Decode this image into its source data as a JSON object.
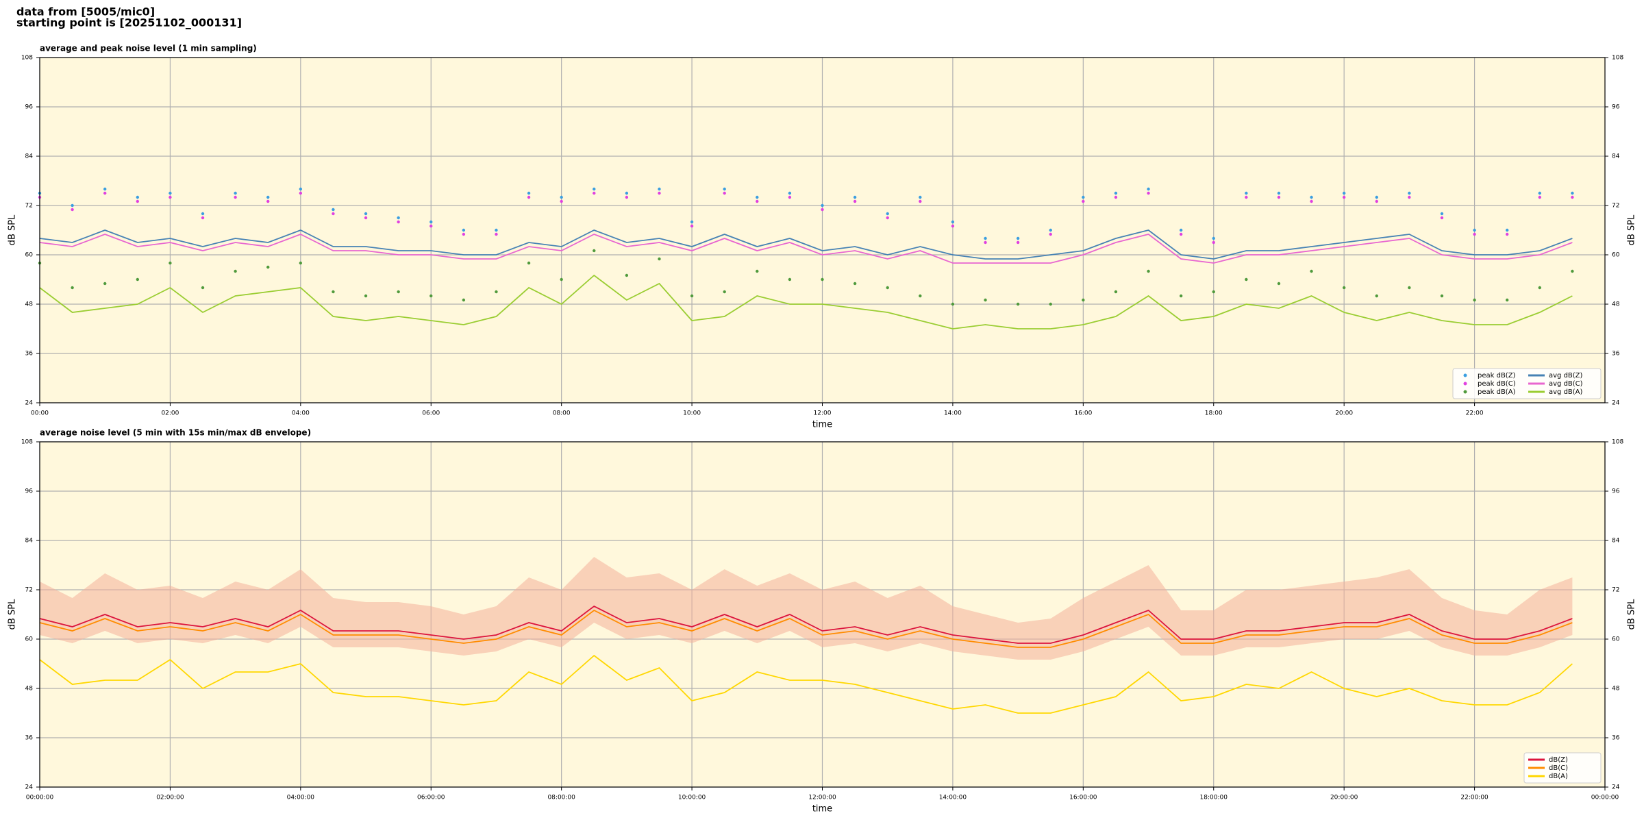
{
  "figure_title": [
    "data from [5005/mic0]",
    "starting point is [20251102_000131]"
  ],
  "chart_data": [
    {
      "type": "line",
      "title": "average and peak noise level (1 min sampling)",
      "xlabel": "time",
      "ylabel": "dB SPL",
      "x": [
        0,
        0.5,
        1,
        1.5,
        2,
        2.5,
        3,
        3.5,
        4,
        4.5,
        5,
        5.5,
        6,
        6.5,
        7,
        7.5,
        8,
        8.5,
        9,
        9.5,
        10,
        10.5,
        11,
        11.5,
        12,
        12.5,
        13,
        13.5,
        14,
        14.5,
        15,
        15.5,
        16,
        16.5,
        17,
        17.5,
        18,
        18.5,
        19,
        19.5,
        20,
        20.5,
        21,
        21.5,
        22,
        22.5,
        23,
        23.5
      ],
      "xlim": [
        0,
        24
      ],
      "xticks": [
        {
          "value": 0,
          "label": "00:00"
        },
        {
          "value": 2,
          "label": "02:00"
        },
        {
          "value": 4,
          "label": "04:00"
        },
        {
          "value": 6,
          "label": "06:00"
        },
        {
          "value": 8,
          "label": "08:00"
        },
        {
          "value": 10,
          "label": "10:00"
        },
        {
          "value": 12,
          "label": "12:00"
        },
        {
          "value": 14,
          "label": "14:00"
        },
        {
          "value": 16,
          "label": "16:00"
        },
        {
          "value": 18,
          "label": "18:00"
        },
        {
          "value": 20,
          "label": "20:00"
        },
        {
          "value": 22,
          "label": "22:00"
        }
      ],
      "ylim": [
        24,
        108
      ],
      "yticks": [
        24,
        36,
        48,
        60,
        72,
        84,
        96,
        108
      ],
      "grid": true,
      "legend": "lower right",
      "legend_columns": 2,
      "background": "#fff8dc",
      "series": [
        {
          "name": "peak dB(Z)",
          "style": "dots",
          "color": "#3a9ee0",
          "values": [
            75,
            72,
            76,
            74,
            75,
            70,
            75,
            74,
            76,
            71,
            70,
            69,
            68,
            66,
            66,
            75,
            74,
            76,
            75,
            76,
            68,
            76,
            74,
            75,
            72,
            74,
            70,
            74,
            68,
            64,
            64,
            66,
            74,
            75,
            76,
            66,
            64,
            75,
            75,
            74,
            75,
            74,
            75,
            70,
            66,
            66,
            75,
            75
          ]
        },
        {
          "name": "peak dB(C)",
          "style": "dots",
          "color": "#e040e0",
          "values": [
            74,
            71,
            75,
            73,
            74,
            69,
            74,
            73,
            75,
            70,
            69,
            68,
            67,
            65,
            65,
            74,
            73,
            75,
            74,
            75,
            67,
            75,
            73,
            74,
            71,
            73,
            69,
            73,
            67,
            63,
            63,
            65,
            73,
            74,
            75,
            65,
            63,
            74,
            74,
            73,
            74,
            73,
            74,
            69,
            65,
            65,
            74,
            74
          ]
        },
        {
          "name": "peak dB(A)",
          "style": "dots",
          "color": "#4f9a3c",
          "values": [
            58,
            52,
            53,
            54,
            58,
            52,
            56,
            57,
            58,
            51,
            50,
            51,
            50,
            49,
            51,
            58,
            54,
            61,
            55,
            59,
            50,
            51,
            56,
            54,
            54,
            53,
            52,
            50,
            48,
            49,
            48,
            48,
            49,
            51,
            56,
            50,
            51,
            54,
            53,
            56,
            52,
            50,
            52,
            50,
            49,
            49,
            52,
            56
          ]
        },
        {
          "name": "avg dB(Z)",
          "style": "line",
          "color": "#4682b4",
          "values": [
            64,
            63,
            66,
            63,
            64,
            62,
            64,
            63,
            66,
            62,
            62,
            61,
            61,
            60,
            60,
            63,
            62,
            66,
            63,
            64,
            62,
            65,
            62,
            64,
            61,
            62,
            60,
            62,
            60,
            59,
            59,
            60,
            61,
            64,
            66,
            60,
            59,
            61,
            61,
            62,
            63,
            64,
            65,
            61,
            60,
            60,
            61,
            64
          ]
        },
        {
          "name": "avg dB(C)",
          "style": "line",
          "color": "#e866d0",
          "values": [
            63,
            62,
            65,
            62,
            63,
            61,
            63,
            62,
            65,
            61,
            61,
            60,
            60,
            59,
            59,
            62,
            61,
            65,
            62,
            63,
            61,
            64,
            61,
            63,
            60,
            61,
            59,
            61,
            58,
            58,
            58,
            58,
            60,
            63,
            65,
            59,
            58,
            60,
            60,
            61,
            62,
            63,
            64,
            60,
            59,
            59,
            60,
            63
          ]
        },
        {
          "name": "avg dB(A)",
          "style": "line",
          "color": "#9acd32",
          "values": [
            52,
            46,
            47,
            48,
            52,
            46,
            50,
            51,
            52,
            45,
            44,
            45,
            44,
            43,
            45,
            52,
            48,
            55,
            49,
            53,
            44,
            45,
            50,
            48,
            48,
            47,
            46,
            44,
            42,
            43,
            42,
            42,
            43,
            45,
            50,
            44,
            45,
            48,
            47,
            50,
            46,
            44,
            46,
            44,
            43,
            43,
            46,
            50
          ]
        }
      ]
    },
    {
      "type": "line",
      "title": "average noise level (5 min with 15s min/max dB envelope)",
      "xlabel": "time",
      "ylabel": "dB SPL",
      "x": [
        0,
        0.5,
        1,
        1.5,
        2,
        2.5,
        3,
        3.5,
        4,
        4.5,
        5,
        5.5,
        6,
        6.5,
        7,
        7.5,
        8,
        8.5,
        9,
        9.5,
        10,
        10.5,
        11,
        11.5,
        12,
        12.5,
        13,
        13.5,
        14,
        14.5,
        15,
        15.5,
        16,
        16.5,
        17,
        17.5,
        18,
        18.5,
        19,
        19.5,
        20,
        20.5,
        21,
        21.5,
        22,
        22.5,
        23,
        23.5
      ],
      "xlim": [
        0,
        24
      ],
      "xticks": [
        {
          "value": 0,
          "label": "00:00:00"
        },
        {
          "value": 2,
          "label": "02:00:00"
        },
        {
          "value": 4,
          "label": "04:00:00"
        },
        {
          "value": 6,
          "label": "06:00:00"
        },
        {
          "value": 8,
          "label": "08:00:00"
        },
        {
          "value": 10,
          "label": "10:00:00"
        },
        {
          "value": 12,
          "label": "12:00:00"
        },
        {
          "value": 14,
          "label": "14:00:00"
        },
        {
          "value": 16,
          "label": "16:00:00"
        },
        {
          "value": 18,
          "label": "18:00:00"
        },
        {
          "value": 20,
          "label": "20:00:00"
        },
        {
          "value": 22,
          "label": "22:00:00"
        },
        {
          "value": 24,
          "label": "00:00:00"
        }
      ],
      "ylim": [
        24,
        108
      ],
      "yticks": [
        24,
        36,
        48,
        60,
        72,
        84,
        96,
        108
      ],
      "grid": true,
      "legend": "lower right",
      "legend_columns": 1,
      "background": "#fff8dc",
      "envelope": {
        "color": "#f4b09a",
        "high": [
          74,
          70,
          76,
          72,
          73,
          70,
          74,
          72,
          77,
          70,
          69,
          69,
          68,
          66,
          68,
          75,
          72,
          80,
          75,
          76,
          72,
          77,
          73,
          76,
          72,
          74,
          70,
          73,
          68,
          66,
          64,
          65,
          70,
          74,
          78,
          67,
          67,
          72,
          72,
          73,
          74,
          75,
          77,
          70,
          67,
          66,
          72,
          75
        ],
        "low": [
          61,
          59,
          62,
          59,
          60,
          59,
          61,
          59,
          63,
          58,
          58,
          58,
          57,
          56,
          57,
          60,
          58,
          64,
          60,
          61,
          59,
          62,
          59,
          62,
          58,
          59,
          57,
          59,
          57,
          56,
          55,
          55,
          57,
          60,
          63,
          56,
          56,
          58,
          58,
          59,
          60,
          60,
          62,
          58,
          56,
          56,
          58,
          61
        ]
      },
      "series": [
        {
          "name": "dB(Z)",
          "style": "line",
          "color": "#dc143c",
          "values": [
            65,
            63,
            66,
            63,
            64,
            63,
            65,
            63,
            67,
            62,
            62,
            62,
            61,
            60,
            61,
            64,
            62,
            68,
            64,
            65,
            63,
            66,
            63,
            66,
            62,
            63,
            61,
            63,
            61,
            60,
            59,
            59,
            61,
            64,
            67,
            60,
            60,
            62,
            62,
            63,
            64,
            64,
            66,
            62,
            60,
            60,
            62,
            65
          ]
        },
        {
          "name": "dB(C)",
          "style": "line",
          "color": "#ff8c00",
          "values": [
            64,
            62,
            65,
            62,
            63,
            62,
            64,
            62,
            66,
            61,
            61,
            61,
            60,
            59,
            60,
            63,
            61,
            67,
            63,
            64,
            62,
            65,
            62,
            65,
            61,
            62,
            60,
            62,
            60,
            59,
            58,
            58,
            60,
            63,
            66,
            59,
            59,
            61,
            61,
            62,
            63,
            63,
            65,
            61,
            59,
            59,
            61,
            64
          ]
        },
        {
          "name": "dB(A)",
          "style": "line",
          "color": "#ffd700",
          "values": [
            55,
            49,
            50,
            50,
            55,
            48,
            52,
            52,
            54,
            47,
            46,
            46,
            45,
            44,
            45,
            52,
            49,
            56,
            50,
            53,
            45,
            47,
            52,
            50,
            50,
            49,
            47,
            45,
            43,
            44,
            42,
            42,
            44,
            46,
            52,
            45,
            46,
            49,
            48,
            52,
            48,
            46,
            48,
            45,
            44,
            44,
            47,
            54
          ]
        }
      ]
    }
  ]
}
